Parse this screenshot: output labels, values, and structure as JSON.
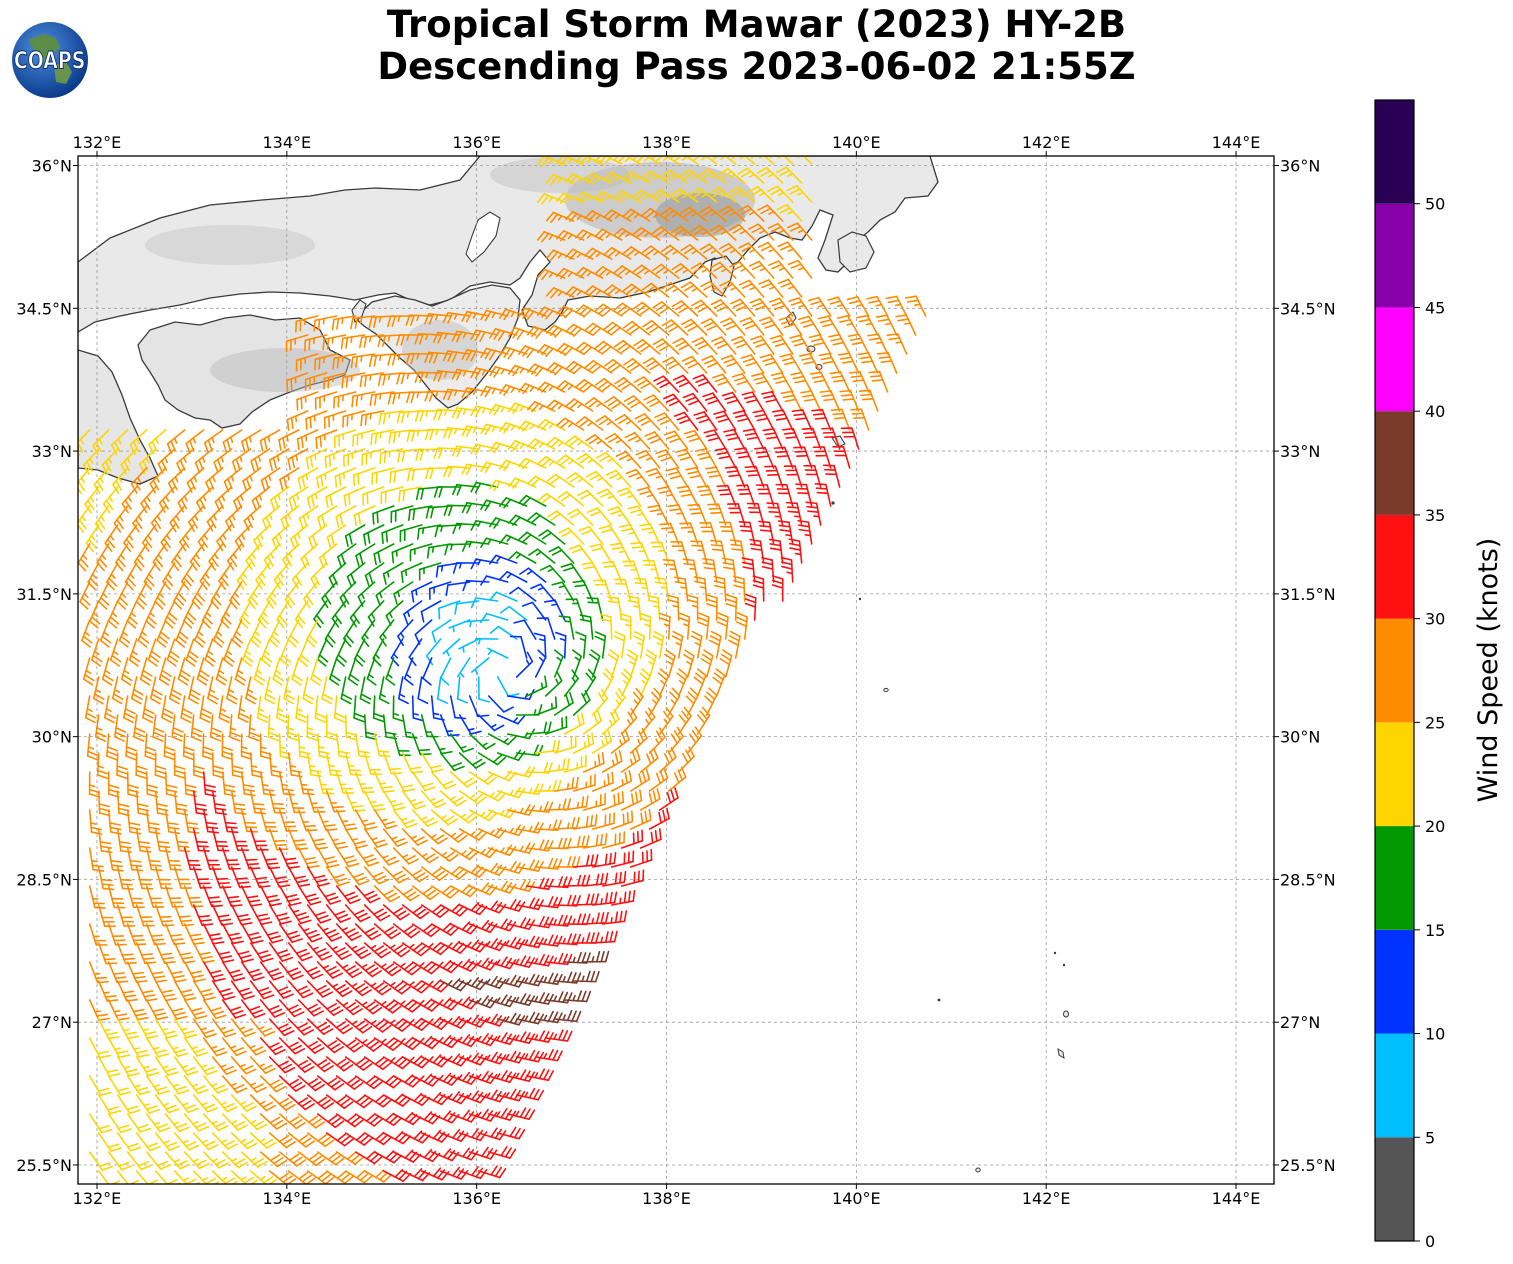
{
  "title": {
    "line1": "Tropical Storm Mawar (2023) HY-2B",
    "line2": "Descending Pass 2023-06-02 21:55Z"
  },
  "logo": {
    "text": "COAPS"
  },
  "map": {
    "lon_range": [
      131.8,
      144.4
    ],
    "lat_range": [
      25.3,
      36.1
    ],
    "lon_ticks": [
      {
        "value": 132,
        "label": "132°E"
      },
      {
        "value": 134,
        "label": "134°E"
      },
      {
        "value": 136,
        "label": "136°E"
      },
      {
        "value": 138,
        "label": "138°E"
      },
      {
        "value": 140,
        "label": "140°E"
      },
      {
        "value": 142,
        "label": "142°E"
      },
      {
        "value": 144,
        "label": "144°E"
      }
    ],
    "lat_ticks": [
      {
        "value": 36,
        "label": "36°N"
      },
      {
        "value": 34.5,
        "label": "34.5°N"
      },
      {
        "value": 33,
        "label": "33°N"
      },
      {
        "value": 31.5,
        "label": "31.5°N"
      },
      {
        "value": 30,
        "label": "30°N"
      },
      {
        "value": 28.5,
        "label": "28.5°N"
      },
      {
        "value": 27,
        "label": "27°N"
      },
      {
        "value": 25.5,
        "label": "25.5°N"
      }
    ],
    "gridlines": true,
    "storm_center": {
      "lon": 136.3,
      "lat": 30.7
    },
    "land_color": "#e6e6e6",
    "coast_color": "#333333"
  },
  "colorbar": {
    "label": "Wind Speed (knots)",
    "ticks": [
      "0",
      "5",
      "10",
      "15",
      "20",
      "25",
      "30",
      "35",
      "40",
      "45",
      "50"
    ],
    "bins": [
      {
        "min": 0,
        "max": 5,
        "color": "#555555"
      },
      {
        "min": 5,
        "max": 10,
        "color": "#00bfff"
      },
      {
        "min": 10,
        "max": 15,
        "color": "#0033ff"
      },
      {
        "min": 15,
        "max": 20,
        "color": "#009900"
      },
      {
        "min": 20,
        "max": 25,
        "color": "#ffd500"
      },
      {
        "min": 25,
        "max": 30,
        "color": "#ff8c00"
      },
      {
        "min": 30,
        "max": 35,
        "color": "#ff1111"
      },
      {
        "min": 35,
        "max": 40,
        "color": "#7a3b2a"
      },
      {
        "min": 40,
        "max": 45,
        "color": "#ff00ff"
      },
      {
        "min": 45,
        "max": 50,
        "color": "#8800aa"
      },
      {
        "min": 50,
        "max": 55,
        "color": "#2a0055"
      }
    ]
  }
}
